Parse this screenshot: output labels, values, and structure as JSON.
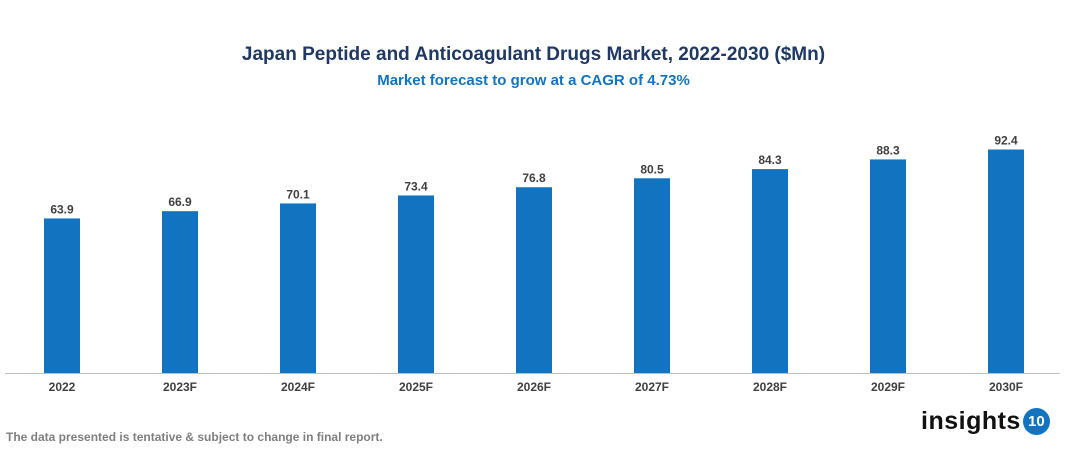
{
  "chart_data": {
    "type": "bar",
    "title": "Japan Peptide and Anticoagulant Drugs Market, 2022-2030 ($Mn)",
    "subtitle": "Market forecast to grow at a CAGR of 4.73%",
    "categories": [
      "2022",
      "2023F",
      "2024F",
      "2025F",
      "2026F",
      "2027F",
      "2028F",
      "2029F",
      "2030F"
    ],
    "values": [
      63.9,
      66.9,
      70.1,
      73.4,
      76.8,
      80.5,
      84.3,
      88.3,
      92.4
    ],
    "ylim": [
      0,
      100
    ],
    "grid": false,
    "bar_color": "#1274c0"
  },
  "footer": {
    "note": "The data presented is tentative & subject to change in final report."
  },
  "logo": {
    "text": "insights",
    "number": "10"
  }
}
